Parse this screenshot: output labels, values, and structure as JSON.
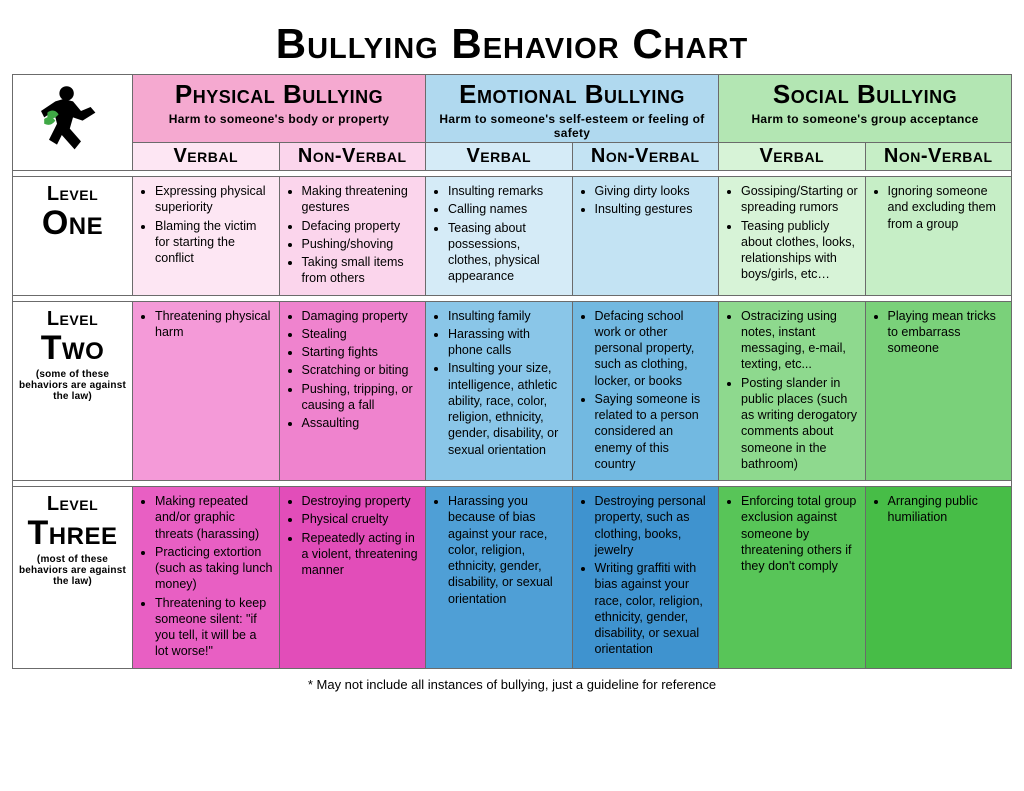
{
  "title": "Bullying Behavior Chart",
  "footnote": "* May not include all instances of bullying, just a guideline for reference",
  "categories": [
    {
      "title": "Physical Bullying",
      "subtitle": "Harm to someone's body or property",
      "sub_verbal": "Verbal",
      "sub_nonverbal": "Non-Verbal",
      "colors": {
        "header": "#f5a9d0",
        "l1v": "#fde6f3",
        "l1n": "#fbd5ec",
        "l2v": "#f49ad8",
        "l2n": "#ef83ce",
        "l3v": "#e85fc3",
        "l3n": "#e24db9"
      }
    },
    {
      "title": "Emotional Bullying",
      "subtitle": "Harm to someone's self-esteem or feeling of safety",
      "sub_verbal": "Verbal",
      "sub_nonverbal": "Non-Verbal",
      "colors": {
        "header": "#b0d9ef",
        "l1v": "#d5ebf7",
        "l1n": "#c3e3f3",
        "l2v": "#8ac6e8",
        "l2n": "#72b9e1",
        "l3v": "#4f9fd6",
        "l3n": "#3f93cf"
      }
    },
    {
      "title": "Social Bullying",
      "subtitle": "Harm to someone's group acceptance",
      "sub_verbal": "Verbal",
      "sub_nonverbal": "Non-Verbal",
      "colors": {
        "header": "#b3e6b3",
        "l1v": "#d7f3d7",
        "l1n": "#c6eec6",
        "l2v": "#8ed98e",
        "l2n": "#7ad17a",
        "l3v": "#58c558",
        "l3n": "#47bd47"
      }
    }
  ],
  "levels": [
    {
      "small": "Level",
      "big": "One",
      "note": ""
    },
    {
      "small": "Level",
      "big": "Two",
      "note": "(some of these behaviors are against the law)"
    },
    {
      "small": "Level",
      "big": "Three",
      "note": "(most of these behaviors are against the law)"
    }
  ],
  "cells": {
    "l1": {
      "phys_v": [
        "Expressing physical superiority",
        "Blaming the victim for starting the conflict"
      ],
      "phys_n": [
        "Making threatening gestures",
        "Defacing property",
        "Pushing/shoving",
        "Taking small items from others"
      ],
      "emo_v": [
        "Insulting remarks",
        "Calling names",
        "Teasing about possessions, clothes, physical appearance"
      ],
      "emo_n": [
        "Giving dirty looks",
        "Insulting gestures"
      ],
      "soc_v": [
        "Gossiping/Starting or spreading rumors",
        "Teasing publicly about clothes, looks, relationships with boys/girls, etc…"
      ],
      "soc_n": [
        "Ignoring someone and excluding them from a group"
      ]
    },
    "l2": {
      "phys_v": [
        "Threatening physical harm"
      ],
      "phys_n": [
        "Damaging property",
        "Stealing",
        "Starting fights",
        "Scratching or biting",
        "Pushing, tripping, or causing a fall",
        "Assaulting"
      ],
      "emo_v": [
        "Insulting family",
        "Harassing with phone calls",
        "Insulting your size, intelligence, athletic ability, race, color, religion, ethnicity, gender, disability, or sexual orientation"
      ],
      "emo_n": [
        "Defacing school work or other personal property, such as clothing, locker, or books",
        "Saying someone is related to a person considered an enemy of this country"
      ],
      "soc_v": [
        "Ostracizing using notes, instant messaging, e-mail, texting, etc...",
        "Posting slander in public places (such as writing derogatory comments about someone in the bathroom)"
      ],
      "soc_n": [
        "Playing mean tricks to embarrass someone"
      ]
    },
    "l3": {
      "phys_v": [
        "Making repeated and/or graphic threats (harassing)",
        "Practicing extortion (such as taking lunch money)",
        "Threatening to keep someone silent: \"if you tell, it will be a lot worse!\""
      ],
      "phys_n": [
        "Destroying property",
        "Physical cruelty",
        "Repeatedly acting in a violent, threatening manner"
      ],
      "emo_v": [
        "Harassing you because of bias against your race, color, religion, ethnicity, gender, disability, or sexual orientation"
      ],
      "emo_n": [
        "Destroying personal property, such as clothing, books, jewelry",
        "Writing graffiti with bias against your race, color, religion, ethnicity, gender, disability, or sexual orientation"
      ],
      "soc_v": [
        "Enforcing total group exclusion against someone by threatening others if they don't comply"
      ],
      "soc_n": [
        "Arranging public humiliation"
      ]
    }
  }
}
